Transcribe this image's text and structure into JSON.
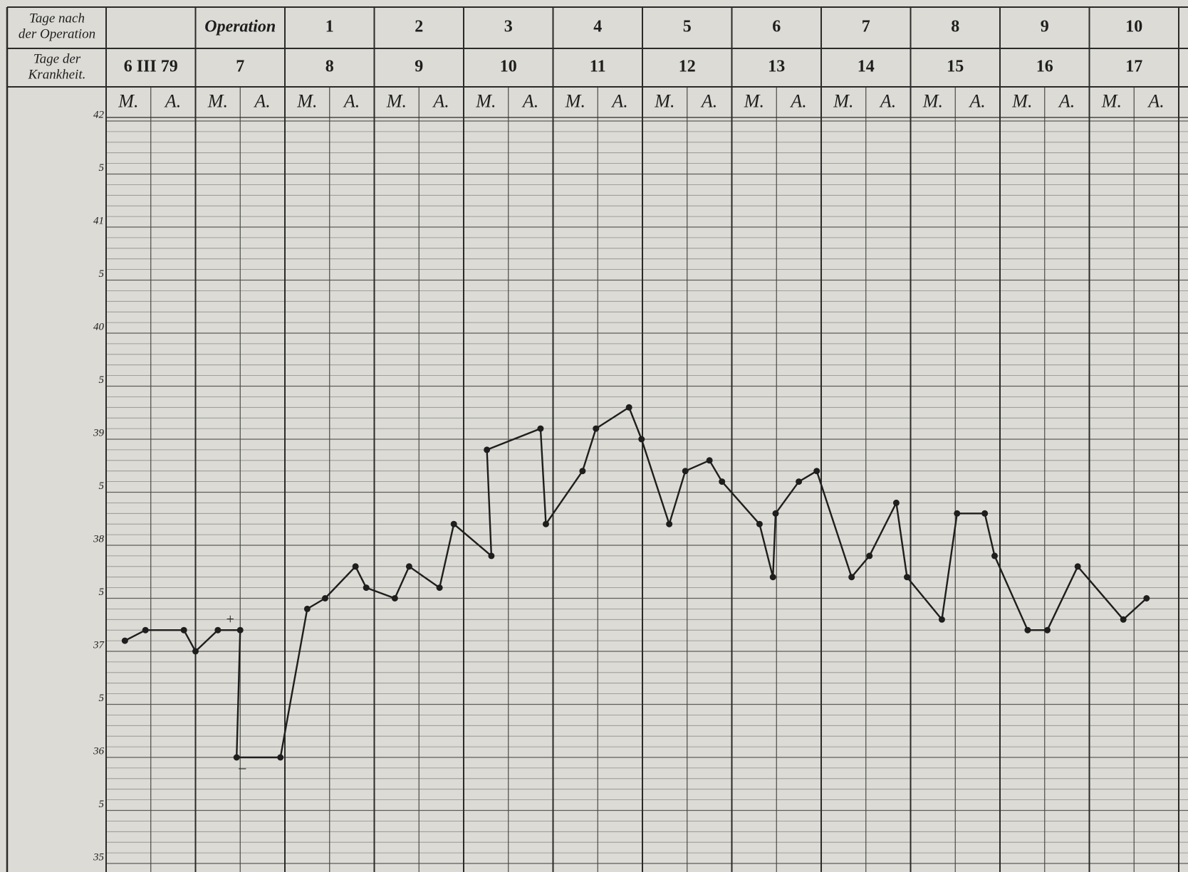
{
  "chart_data": {
    "type": "line",
    "days_after_operation": {
      "label_lines": [
        "Tage nach",
        "der Operation"
      ],
      "values": [
        null,
        "Operation",
        "1",
        "2",
        "3",
        "4",
        "5",
        "6",
        "7",
        "8",
        "9",
        "10"
      ]
    },
    "days_of_illness": {
      "label_lines": [
        "Tage der",
        "Krankheit."
      ],
      "values": [
        "6 III 79",
        "7",
        "8",
        "9",
        "10",
        "11",
        "12",
        "13",
        "14",
        "15",
        "16",
        "17"
      ]
    },
    "half_days": [
      "M.",
      "A."
    ],
    "annotations": [
      {
        "text": "+",
        "point": 5
      },
      {
        "text": "–",
        "point": 6
      }
    ],
    "xlim": [
      0,
      12
    ],
    "ylim": [
      35,
      42
    ],
    "yticks": [
      35,
      {
        "value": 35.5,
        "label": "5"
      },
      36,
      {
        "value": 36.5,
        "label": "5"
      },
      37,
      {
        "value": 37.5,
        "label": "5"
      },
      38,
      {
        "value": 38.5,
        "label": "5"
      },
      39,
      {
        "value": 39.5,
        "label": "5"
      },
      40,
      {
        "value": 40.5,
        "label": "5"
      },
      41,
      {
        "value": 41.5,
        "label": "5"
      },
      42
    ],
    "grid": true,
    "series": [
      {
        "color": "#1e1e1e",
        "x": [
          0.21,
          0.44,
          0.87,
          1.0,
          1.25,
          1.5,
          1.46,
          1.95,
          2.25,
          2.45,
          2.79,
          2.91,
          3.23,
          3.39,
          3.73,
          3.89,
          4.31,
          4.26,
          4.86,
          4.92,
          5.33,
          5.48,
          5.85,
          5.99,
          6.3,
          6.48,
          6.75,
          6.89,
          7.31,
          7.46,
          7.49,
          7.75,
          7.95,
          8.34,
          8.54,
          8.84,
          8.96,
          9.35,
          9.52,
          9.83,
          9.94,
          10.31,
          10.53,
          10.87,
          11.38,
          11.64
        ],
        "values": [
          37.1,
          37.2,
          37.2,
          37.0,
          37.2,
          37.2,
          36.0,
          36.0,
          37.4,
          37.5,
          37.8,
          37.6,
          37.5,
          37.8,
          37.6,
          38.2,
          37.9,
          38.9,
          39.1,
          38.2,
          38.7,
          39.1,
          39.3,
          39.0,
          38.2,
          38.7,
          38.8,
          38.6,
          38.2,
          37.7,
          38.3,
          38.6,
          38.7,
          37.7,
          37.9,
          38.4,
          37.7,
          37.3,
          38.3,
          38.3,
          37.9,
          37.2,
          37.2,
          37.8,
          37.3,
          37.5
        ]
      }
    ]
  }
}
